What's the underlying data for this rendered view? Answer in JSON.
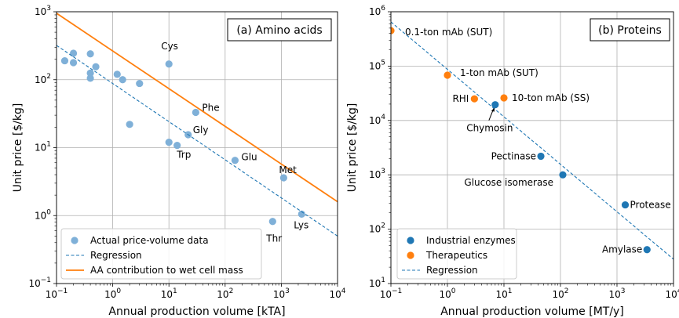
{
  "colors": {
    "actual": "#7fb0d8",
    "regression": "#1f77b4",
    "aa": "#ff7f0e",
    "enzyme": "#1f77b4",
    "therapeutic": "#ff7f0e",
    "grid": "#b0b0b0"
  },
  "chart_data": [
    {
      "type": "scatter",
      "title": "(a) Amino acids",
      "xlabel": "Annual production volume [kTA]",
      "ylabel": "Unit price [$/kg]",
      "xscale": "log",
      "yscale": "log",
      "xlim": [
        0.1,
        10000
      ],
      "ylim": [
        0.1,
        1000
      ],
      "xticks": [
        {
          "v": 0.1,
          "b": "10",
          "e": "−1"
        },
        {
          "v": 1,
          "b": "10",
          "e": "0"
        },
        {
          "v": 10,
          "b": "10",
          "e": "1"
        },
        {
          "v": 100,
          "b": "10",
          "e": "2"
        },
        {
          "v": 1000,
          "b": "10",
          "e": "3"
        },
        {
          "v": 10000,
          "b": "10",
          "e": "4"
        }
      ],
      "yticks": [
        {
          "v": 0.1,
          "b": "10",
          "e": "−1"
        },
        {
          "v": 1,
          "b": "10",
          "e": "0"
        },
        {
          "v": 10,
          "b": "10",
          "e": "1"
        },
        {
          "v": 100,
          "b": "10",
          "e": "2"
        },
        {
          "v": 1000,
          "b": "10",
          "e": "3"
        }
      ],
      "grid": true,
      "legend_position": "lower-left",
      "series": [
        {
          "name": "Actual price-volume data",
          "kind": "scatter",
          "color_key": "actual",
          "points": [
            {
              "x": 0.14,
              "y": 190,
              "label": ""
            },
            {
              "x": 0.2,
              "y": 245,
              "label": ""
            },
            {
              "x": 0.2,
              "y": 178,
              "label": ""
            },
            {
              "x": 0.4,
              "y": 240,
              "label": ""
            },
            {
              "x": 0.4,
              "y": 125,
              "label": ""
            },
            {
              "x": 0.4,
              "y": 105,
              "label": ""
            },
            {
              "x": 0.5,
              "y": 155,
              "label": ""
            },
            {
              "x": 1.2,
              "y": 120,
              "label": ""
            },
            {
              "x": 1.5,
              "y": 100,
              "label": ""
            },
            {
              "x": 2.0,
              "y": 22,
              "label": ""
            },
            {
              "x": 3.0,
              "y": 88,
              "label": ""
            },
            {
              "x": 10,
              "y": 170,
              "label": "Cys"
            },
            {
              "x": 30,
              "y": 33,
              "label": "Phe"
            },
            {
              "x": 22,
              "y": 15.5,
              "label": "Gly"
            },
            {
              "x": 10,
              "y": 12,
              "label": "Trp"
            },
            {
              "x": 14,
              "y": 10.8,
              "label": ""
            },
            {
              "x": 150,
              "y": 6.5,
              "label": "Glu"
            },
            {
              "x": 1100,
              "y": 3.6,
              "label": "Met"
            },
            {
              "x": 2300,
              "y": 1.05,
              "label": "Lys"
            },
            {
              "x": 700,
              "y": 0.82,
              "label": "Thr"
            }
          ]
        },
        {
          "name": "Regression",
          "kind": "dashed-line",
          "color_key": "regression",
          "points": [
            {
              "x": 0.1,
              "y": 320
            },
            {
              "x": 10000,
              "y": 0.5
            }
          ]
        },
        {
          "name": "AA contribution to wet cell mass",
          "kind": "line",
          "color_key": "aa",
          "points": [
            {
              "x": 0.1,
              "y": 950
            },
            {
              "x": 10000,
              "y": 1.6
            }
          ]
        }
      ]
    },
    {
      "type": "scatter",
      "title": "(b) Proteins",
      "xlabel": "Annual production volume [MT/y]",
      "ylabel": "Unit price [$/kg]",
      "xscale": "log",
      "yscale": "log",
      "xlim": [
        0.1,
        10000
      ],
      "ylim": [
        10,
        1000000
      ],
      "xticks": [
        {
          "v": 0.1,
          "b": "10",
          "e": "−1"
        },
        {
          "v": 1,
          "b": "10",
          "e": "0"
        },
        {
          "v": 10,
          "b": "10",
          "e": "1"
        },
        {
          "v": 100,
          "b": "10",
          "e": "2"
        },
        {
          "v": 1000,
          "b": "10",
          "e": "3"
        },
        {
          "v": 10000,
          "b": "10",
          "e": "4"
        }
      ],
      "yticks": [
        {
          "v": 10,
          "b": "10",
          "e": "1"
        },
        {
          "v": 100,
          "b": "10",
          "e": "2"
        },
        {
          "v": 1000,
          "b": "10",
          "e": "3"
        },
        {
          "v": 10000,
          "b": "10",
          "e": "4"
        },
        {
          "v": 100000,
          "b": "10",
          "e": "5"
        },
        {
          "v": 1000000,
          "b": "10",
          "e": "6"
        }
      ],
      "grid": true,
      "legend_position": "lower-left",
      "series": [
        {
          "name": "Industrial enzymes",
          "kind": "scatter",
          "color_key": "enzyme",
          "points": [
            {
              "x": 7,
              "y": 19500,
              "label": "Chymosin"
            },
            {
              "x": 45,
              "y": 2200,
              "label": "Pectinase"
            },
            {
              "x": 110,
              "y": 1000,
              "label": "Glucose isomerase"
            },
            {
              "x": 1400,
              "y": 280,
              "label": "Protease"
            },
            {
              "x": 3400,
              "y": 42,
              "label": "Amylase"
            }
          ]
        },
        {
          "name": "Therapeutics",
          "kind": "scatter",
          "color_key": "therapeutic",
          "points": [
            {
              "x": 0.1,
              "y": 450000,
              "label": "0.1-ton mAb (SUT)"
            },
            {
              "x": 1,
              "y": 68000,
              "label": "1-ton mAb (SUT)"
            },
            {
              "x": 3,
              "y": 25000,
              "label": "RHI"
            },
            {
              "x": 10,
              "y": 26000,
              "label": "10-ton mAb (SS)"
            }
          ]
        },
        {
          "name": "Regression",
          "kind": "dashed-line",
          "color_key": "regression",
          "points": [
            {
              "x": 0.1,
              "y": 650000
            },
            {
              "x": 10000,
              "y": 28
            }
          ]
        }
      ]
    }
  ]
}
